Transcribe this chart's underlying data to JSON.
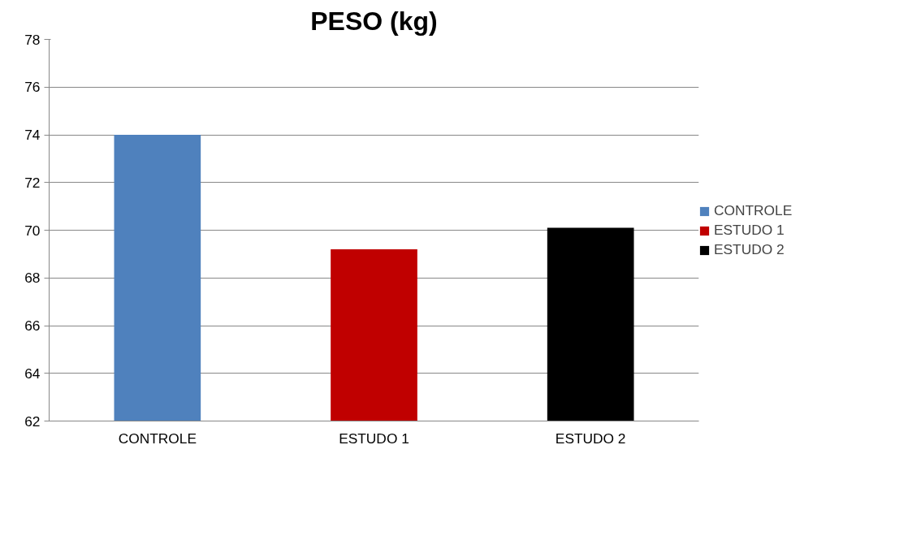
{
  "chart_data": {
    "type": "bar",
    "title": "PESO (kg)",
    "categories": [
      "CONTROLE",
      "ESTUDO 1",
      "ESTUDO 2"
    ],
    "series": [
      {
        "name": "CONTROLE",
        "color": "#4f81bd",
        "values": [
          74,
          null,
          null
        ]
      },
      {
        "name": "ESTUDO 1",
        "color": "#c00000",
        "values": [
          null,
          69.2,
          null
        ]
      },
      {
        "name": "ESTUDO 2",
        "color": "#000000",
        "values": [
          null,
          null,
          70.1
        ]
      }
    ],
    "ylim": [
      62,
      78
    ],
    "yticks": [
      62,
      64,
      66,
      68,
      70,
      72,
      74,
      76,
      78
    ],
    "grid": "y",
    "legend": "right"
  }
}
